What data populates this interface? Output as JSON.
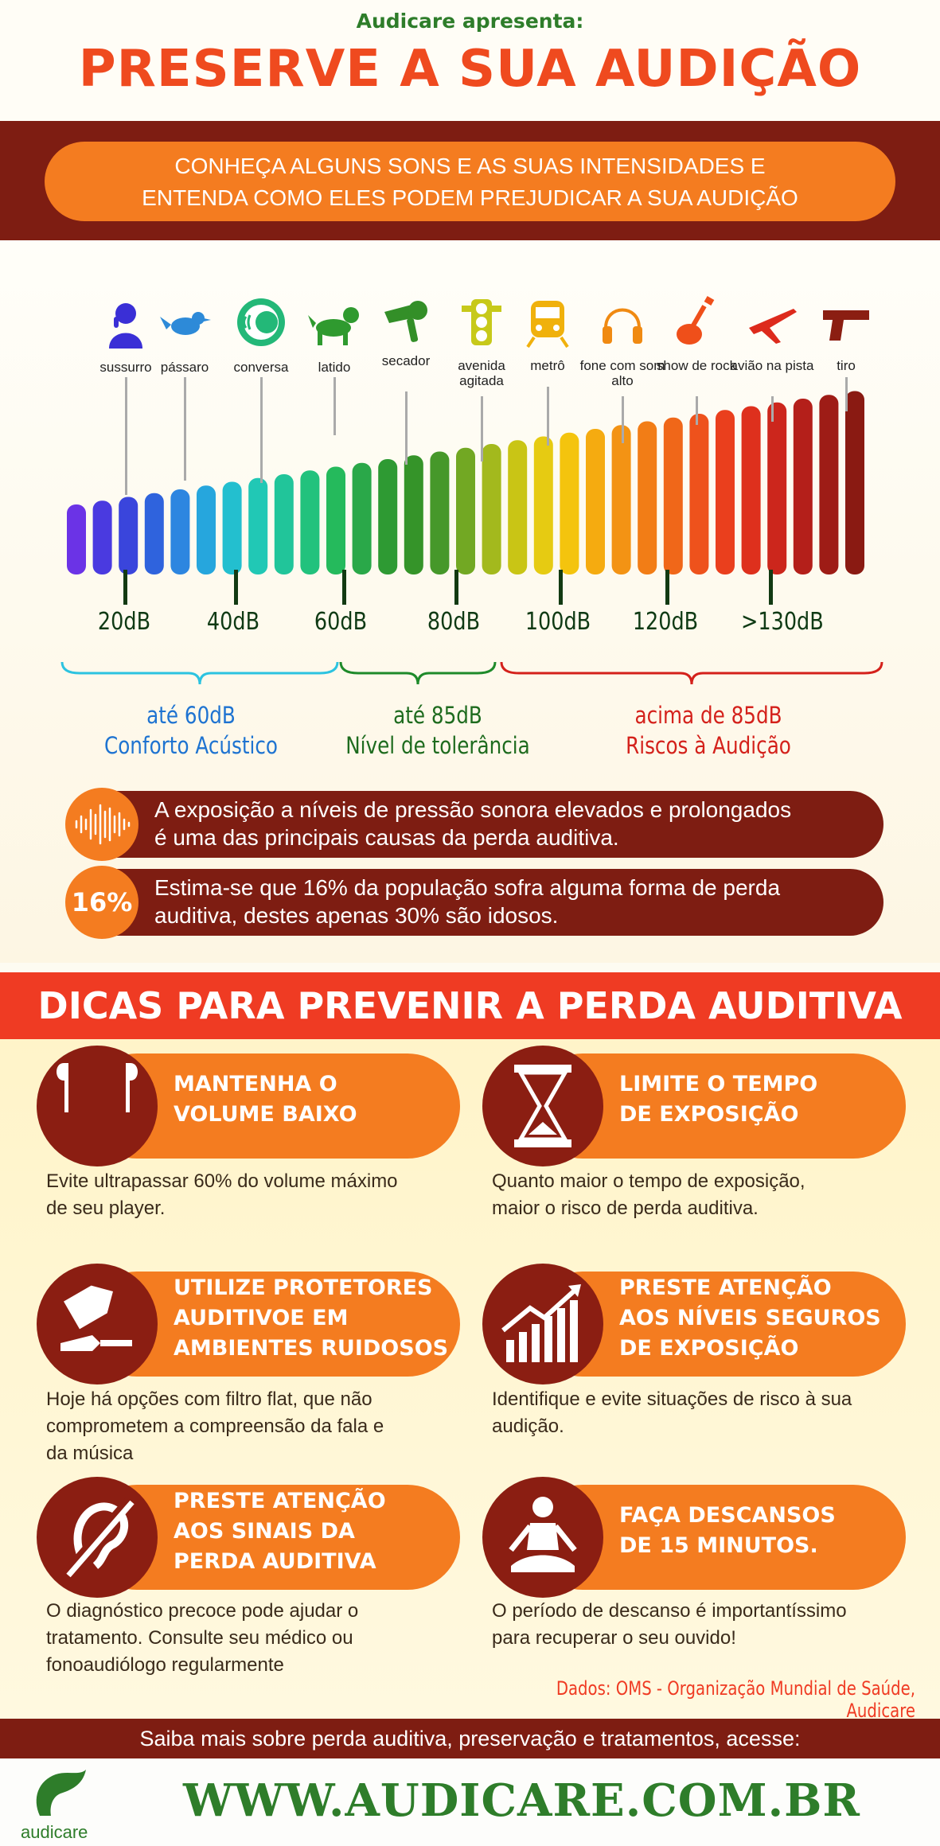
{
  "header": {
    "presents": "Audicare apresenta:",
    "title": "PRESERVE A SUA AUDIÇÃO",
    "intro_line1": "CONHEÇA ALGUNS SONS E AS SUAS INTENSIDADES E",
    "intro_line2": "ENTENDA COMO ELES PODEM PREJUDICAR A SUA AUDIÇÃO"
  },
  "sounds": [
    {
      "label": "sussurro",
      "icon": "whisper-icon",
      "color": "#3a2fd6"
    },
    {
      "label": "pássaro",
      "icon": "bird-icon",
      "color": "#2d8ad8"
    },
    {
      "label": "conversa",
      "icon": "conversation-icon",
      "color": "#23b878"
    },
    {
      "label": "latido",
      "icon": "dog-icon",
      "color": "#2f9a2f"
    },
    {
      "label": "secador",
      "icon": "hairdryer-icon",
      "color": "#338f28"
    },
    {
      "label": "avenida agitada",
      "icon": "traffic-light-icon",
      "color": "#c7c91a"
    },
    {
      "label": "metrô",
      "icon": "train-icon",
      "color": "#f0b10c"
    },
    {
      "label": "fone com som alto",
      "icon": "headphones-icon",
      "color": "#f08a12"
    },
    {
      "label": "show de rock",
      "icon": "guitar-icon",
      "color": "#ef4f1a"
    },
    {
      "label": "avião na pista",
      "icon": "airplane-icon",
      "color": "#dd2a1c"
    },
    {
      "label": "tiro",
      "icon": "gun-icon",
      "color": "#8b1e12"
    }
  ],
  "db_labels": [
    "20dB",
    "40dB",
    "60dB",
    "80dB",
    "100dB",
    "120dB",
    ">130dB"
  ],
  "categories": [
    {
      "range": "até 60dB",
      "name": "Conforto Acústico",
      "color": "#1e73d1",
      "bracket": "#2cc3e0"
    },
    {
      "range": "até 85dB",
      "name": "Nível de tolerância",
      "color": "#1e6b1e",
      "bracket": "#1e8a2a"
    },
    {
      "range": "acima de 85dB",
      "name": "Riscos à Audição",
      "color": "#d4211b",
      "bracket": "#d4211b"
    }
  ],
  "facts": [
    {
      "badge": "",
      "icon": "sound-wave-icon",
      "line1": "A exposição a níveis de pressão sonora elevados e prolongados",
      "line2": "é uma das principais causas da perda auditiva."
    },
    {
      "badge": "16%",
      "icon": "",
      "line1": "Estima-se que 16% da população sofra alguma forma de perda",
      "line2": "auditiva, destes apenas 30% são idosos."
    }
  ],
  "tips_title": "DICAS PARA PREVENIR A PERDA AUDITIVA",
  "tips": [
    {
      "title1": "MANTENHA O",
      "title2": "VOLUME BAIXO",
      "title3": "",
      "icon": "earbuds-icon",
      "desc1": "Evite ultrapassar 60% do volume máximo",
      "desc2": "de seu player.",
      "desc3": ""
    },
    {
      "title1": "LIMITE O TEMPO",
      "title2": "DE EXPOSIÇÃO",
      "title3": "",
      "icon": "hourglass-icon",
      "desc1": "Quanto maior o tempo de exposição,",
      "desc2": "maior o risco de perda auditiva.",
      "desc3": ""
    },
    {
      "title1": "UTILIZE PROTETORES",
      "title2": "AUDITIVOE EM",
      "title3": "AMBIENTES RUIDOSOS",
      "icon": "earplugs-icon",
      "desc1": "Hoje há opções com filtro flat, que não",
      "desc2": "comprometem a compreensão da fala e",
      "desc3": "da música"
    },
    {
      "title1": "PRESTE ATENÇÃO",
      "title2": "AOS NÍVEIS SEGUROS",
      "title3": "DE EXPOSIÇÃO",
      "icon": "rising-chart-icon",
      "desc1": "Identifique e evite situações de risco à sua",
      "desc2": "audição.",
      "desc3": ""
    },
    {
      "title1": "PRESTE ATENÇÃO",
      "title2": "AOS SINAIS DA",
      "title3": "PERDA AUDITIVA",
      "icon": "hearing-loss-icon",
      "desc1": "O diagnóstico precoce pode ajudar o",
      "desc2": "tratamento. Consulte seu médico ou",
      "desc3": "fonoaudiólogo regularmente"
    },
    {
      "title1": "FAÇA DESCANSOS",
      "title2": "DE 15 MINUTOS.",
      "title3": "",
      "icon": "meditation-icon",
      "desc1": "O período de descanso é importantíssimo",
      "desc2": "para recuperar o seu ouvido!",
      "desc3": ""
    }
  ],
  "source": "Dados: OMS - Organização Mundial de Saúde, Audicare",
  "footer": {
    "cta": "Saiba mais sobre perda auditiva, preservação e tratamentos, acesse:",
    "url": "WWW.AUDICARE.COM.BR",
    "logo_text": "audicare",
    "logo_icon": "audicare-logo-icon"
  },
  "colors": {
    "dark_red": "#7e1d12",
    "orange": "#f47c20",
    "green": "#2e7d2a",
    "red": "#ef3b23"
  }
}
